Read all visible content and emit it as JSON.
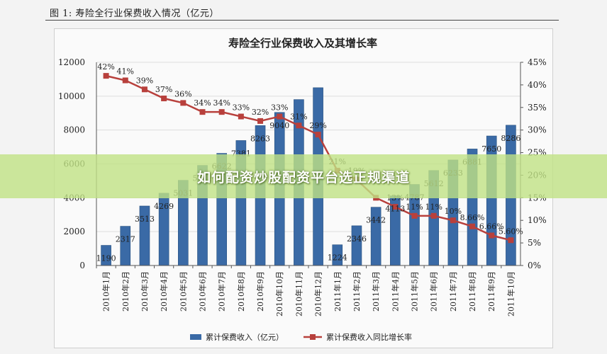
{
  "figure_label": "图 1:  寿险全行业保费收入情况（亿元）",
  "watermark": "如何配资炒股配资平台选正规渠道",
  "chart_data": {
    "type": "bar+line",
    "title": "寿险全行业保费收入及其增长率",
    "categories": [
      "2010年1月",
      "2010年2月",
      "2010年3月",
      "2010年4月",
      "2010年5月",
      "2010年6月",
      "2010年7月",
      "2010年8月",
      "2010年9月",
      "2010年10月",
      "2010年11月",
      "2010年12月",
      "2011年1月",
      "2011年2月",
      "2011年3月",
      "2011年4月",
      "2011年5月",
      "2011年6月",
      "2011年7月",
      "2011年8月",
      "2011年9月",
      "2011年10月"
    ],
    "y_left": {
      "ylim": [
        0,
        12000
      ],
      "ticks": [
        "0",
        "2000",
        "4000",
        "6000",
        "8000",
        "10000",
        "12000"
      ]
    },
    "y_right": {
      "ylim": [
        0,
        45
      ],
      "ticks": [
        "0%",
        "5%",
        "10%",
        "15%",
        "20%",
        "25%",
        "30%",
        "35%",
        "40%",
        "45%"
      ]
    },
    "series": [
      {
        "name": "累计保费收入（亿元）",
        "type": "bar",
        "axis": "left",
        "color": "#3a6aa6",
        "values": [
          1190,
          2317,
          3513,
          4269,
          5031,
          5911,
          6622,
          7381,
          8263,
          9040,
          9800,
          10500,
          1224,
          2346,
          3442,
          4113,
          4787,
          5612,
          6233,
          6881,
          7650,
          8286
        ],
        "labels": [
          "1190",
          "2317",
          "3513",
          "4269",
          "5031",
          "5911",
          "6622",
          "7381",
          "8263",
          "9040",
          "",
          "",
          "1224",
          "2346",
          "3442",
          "4113",
          "4787",
          "5612",
          "6233",
          "6881",
          "7650",
          "8286"
        ]
      },
      {
        "name": "累计保费收入同比增长率",
        "type": "line",
        "axis": "right",
        "color": "#b8403c",
        "values": [
          42,
          41,
          39,
          37,
          36,
          34,
          34,
          33,
          32,
          33,
          31,
          29,
          21,
          19,
          15,
          13,
          11,
          11,
          10,
          8.66,
          6.66,
          5.6
        ],
        "labels": [
          "42%",
          "41%",
          "39%",
          "37%",
          "36%",
          "34%",
          "34%",
          "33%",
          "32%",
          "33%",
          "31%",
          "29%",
          "21%",
          "19%",
          "",
          "13%",
          "11%",
          "11%",
          "10%",
          "8.66%",
          "6.66%",
          "5.60%"
        ]
      }
    ]
  }
}
